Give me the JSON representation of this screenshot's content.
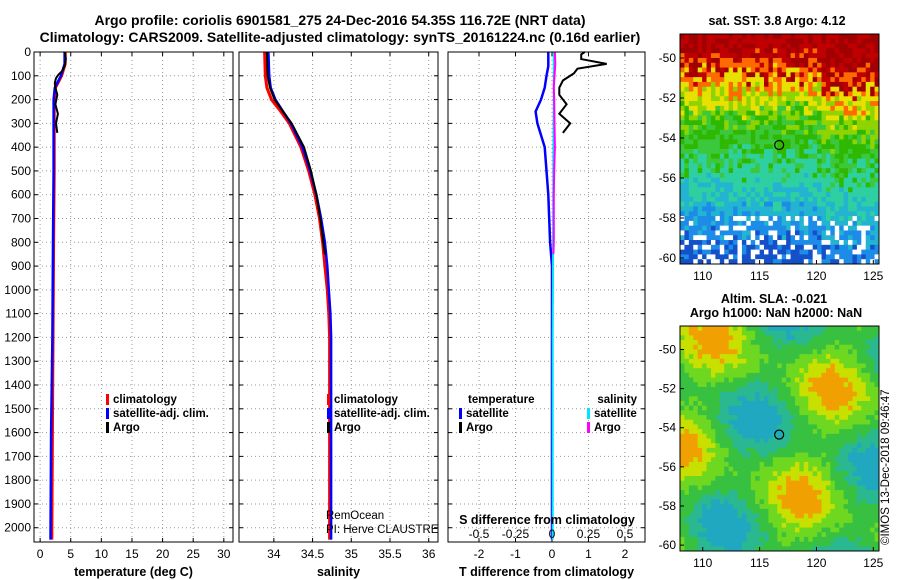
{
  "header": {
    "title_line1": "Argo profile: coriolis 6901581_275 24-Dec-2016 54.35S 116.72E (NRT data)",
    "title_line2": "Climatology: CARS2009. Satellite-adjusted climatology: synTS_20161224.nc (0.16d earlier)"
  },
  "depth_axis": {
    "ticks": [
      0,
      100,
      200,
      300,
      400,
      500,
      600,
      700,
      800,
      900,
      1000,
      1100,
      1200,
      1300,
      1400,
      1500,
      1600,
      1700,
      1800,
      1900,
      2000
    ],
    "range": [
      0,
      2060
    ]
  },
  "colors": {
    "climatology": "#ff0000",
    "satellite_adj": "#0000ff",
    "argo": "#000000",
    "salinity_satellite": "#00e5ff",
    "salinity_argo": "#ff00ff",
    "grid": "#999999"
  },
  "chart_data": [
    {
      "type": "line",
      "name": "temperature-panel",
      "xlabel": "temperature (deg C)",
      "xlim": [
        -1,
        31.5
      ],
      "xticks": [
        0,
        5,
        10,
        15,
        20,
        25,
        30
      ],
      "ylim": [
        2060,
        0
      ],
      "legend": [
        "climatology",
        "satellite-adj. clim.",
        "Argo"
      ],
      "series": [
        {
          "name": "climatology",
          "depth": [
            0,
            50,
            100,
            150,
            200,
            300,
            500,
            800,
            1200,
            1600,
            2050
          ],
          "values": [
            4.1,
            4.1,
            3.5,
            2.5,
            2.3,
            2.3,
            2.3,
            2.2,
            2.1,
            2.0,
            1.9
          ]
        },
        {
          "name": "satellite-adj. clim.",
          "depth": [
            0,
            50,
            100,
            150,
            200,
            300,
            500,
            800,
            1200,
            1600,
            2050
          ],
          "values": [
            4.0,
            4.0,
            3.4,
            2.4,
            2.2,
            2.2,
            2.2,
            2.1,
            2.0,
            1.8,
            1.7
          ]
        },
        {
          "name": "Argo",
          "depth": [
            0,
            10,
            30,
            60,
            80,
            95,
            110,
            130,
            150,
            180,
            220,
            260,
            300,
            340
          ],
          "values": [
            4.0,
            4.1,
            4.2,
            4.0,
            3.6,
            3.0,
            2.6,
            2.4,
            2.5,
            2.8,
            2.5,
            2.9,
            2.6,
            2.8
          ]
        }
      ]
    },
    {
      "type": "line",
      "name": "salinity-panel",
      "xlabel": "salinity",
      "xlim": [
        33.55,
        36.12
      ],
      "xticks": [
        34,
        34.5,
        35,
        35.5,
        36
      ],
      "ylim": [
        2060,
        0
      ],
      "legend": [
        "climatology",
        "satellite-adj. clim.",
        "Argo"
      ],
      "series": [
        {
          "name": "climatology",
          "depth": [
            0,
            100,
            150,
            200,
            250,
            300,
            400,
            500,
            600,
            700,
            800,
            900,
            1000,
            1100,
            1200,
            1400,
            1700,
            2050
          ],
          "values": [
            33.88,
            33.89,
            33.91,
            33.97,
            34.09,
            34.2,
            34.35,
            34.45,
            34.53,
            34.59,
            34.63,
            34.66,
            34.69,
            34.71,
            34.72,
            34.72,
            34.72,
            34.72
          ]
        },
        {
          "name": "satellite-adj. clim.",
          "depth": [
            0,
            100,
            150,
            200,
            250,
            300,
            400,
            500,
            600,
            700,
            800,
            900,
            1000,
            1100,
            1200,
            1400,
            1700,
            2050
          ],
          "values": [
            33.93,
            33.94,
            33.96,
            34.02,
            34.12,
            34.22,
            34.37,
            34.47,
            34.55,
            34.61,
            34.66,
            34.69,
            34.71,
            34.73,
            34.74,
            34.74,
            34.74,
            34.74
          ]
        },
        {
          "name": "Argo",
          "depth": [
            0,
            100,
            150,
            200,
            250,
            300,
            400,
            500,
            600,
            700,
            800,
            850
          ],
          "values": [
            33.91,
            33.92,
            33.95,
            34.01,
            34.12,
            34.23,
            34.39,
            34.48,
            34.55,
            34.6,
            34.64,
            34.66
          ]
        }
      ],
      "credit": {
        "line1": "RemOcean",
        "line2": "PI: Herve CLAUSTRE"
      }
    },
    {
      "type": "line",
      "name": "difference-panel",
      "xlabel": "T difference from climatology",
      "top_label": "S difference from climatology",
      "xlim": [
        -2.85,
        2.55
      ],
      "xticks": [
        -2,
        -1,
        0,
        1,
        2
      ],
      "top_xticks": [
        -0.5,
        -0.25,
        0,
        0.25,
        0.5
      ],
      "top_tick_labels": [
        "-0.5",
        "-0.25",
        "0",
        "0.25",
        "0.5"
      ],
      "ylim": [
        2060,
        0
      ],
      "legend_left": {
        "title": "temperature",
        "items": [
          "satellite",
          "Argo"
        ]
      },
      "legend_right": {
        "title": "salinity",
        "items": [
          "satellite",
          "Argo"
        ]
      },
      "series": [
        {
          "name": "temperature satellite",
          "depth": [
            0,
            60,
            100,
            150,
            200,
            250,
            300,
            400,
            600,
            800,
            900,
            1000,
            1100,
            1200,
            1500,
            2050
          ],
          "values": [
            -0.1,
            -0.1,
            -0.15,
            -0.2,
            -0.3,
            -0.45,
            -0.4,
            -0.2,
            -0.1,
            -0.05,
            0.0,
            0.0,
            0.0,
            0.0,
            0.0,
            0.0
          ]
        },
        {
          "name": "temperature Argo",
          "depth": [
            0,
            10,
            30,
            50,
            70,
            90,
            120,
            150,
            180,
            220,
            260,
            300,
            340
          ],
          "values": [
            0.9,
            0.8,
            0.8,
            1.5,
            0.7,
            0.6,
            0.3,
            0.2,
            0.2,
            0.4,
            0.2,
            0.5,
            0.3
          ]
        },
        {
          "name": "salinity satellite",
          "depth": [
            0,
            100,
            200,
            400,
            800,
            1200,
            1600,
            2050
          ],
          "values": [
            0.05,
            0.05,
            0.05,
            0.04,
            0.03,
            0.02,
            0.02,
            0.02
          ]
        },
        {
          "name": "salinity Argo",
          "depth": [
            0,
            50,
            100,
            150,
            200,
            300,
            400,
            500,
            600,
            700,
            800,
            850
          ],
          "values": [
            0.08,
            0.09,
            0.07,
            0.05,
            0.06,
            0.07,
            0.08,
            0.06,
            0.05,
            0.05,
            0.05,
            0.04
          ]
        }
      ]
    },
    {
      "type": "heatmap",
      "name": "sst-map",
      "title": "sat. SST: 3.8 Argo: 4.12",
      "xlim": [
        108,
        125.5
      ],
      "ylim": [
        -60.3,
        -48.8
      ],
      "xticks": [
        110,
        115,
        120,
        125
      ],
      "yticks": [
        -50,
        -52,
        -54,
        -56,
        -58,
        -60
      ],
      "marker": {
        "lon": 116.72,
        "lat": -54.35
      }
    },
    {
      "type": "heatmap",
      "name": "sla-map",
      "title": "Altim. SLA: -0.021",
      "subtitle": "Argo h1000: NaN h2000: NaN",
      "xlim": [
        108,
        125.5
      ],
      "ylim": [
        -60.3,
        -48.8
      ],
      "xticks": [
        110,
        115,
        120,
        125
      ],
      "yticks": [
        -50,
        -52,
        -54,
        -56,
        -58,
        -60
      ],
      "marker": {
        "lon": 116.72,
        "lat": -54.35
      }
    }
  ],
  "footer": {
    "imos_credit": "©IMOS 13-Dec-2018 09:46:47"
  }
}
